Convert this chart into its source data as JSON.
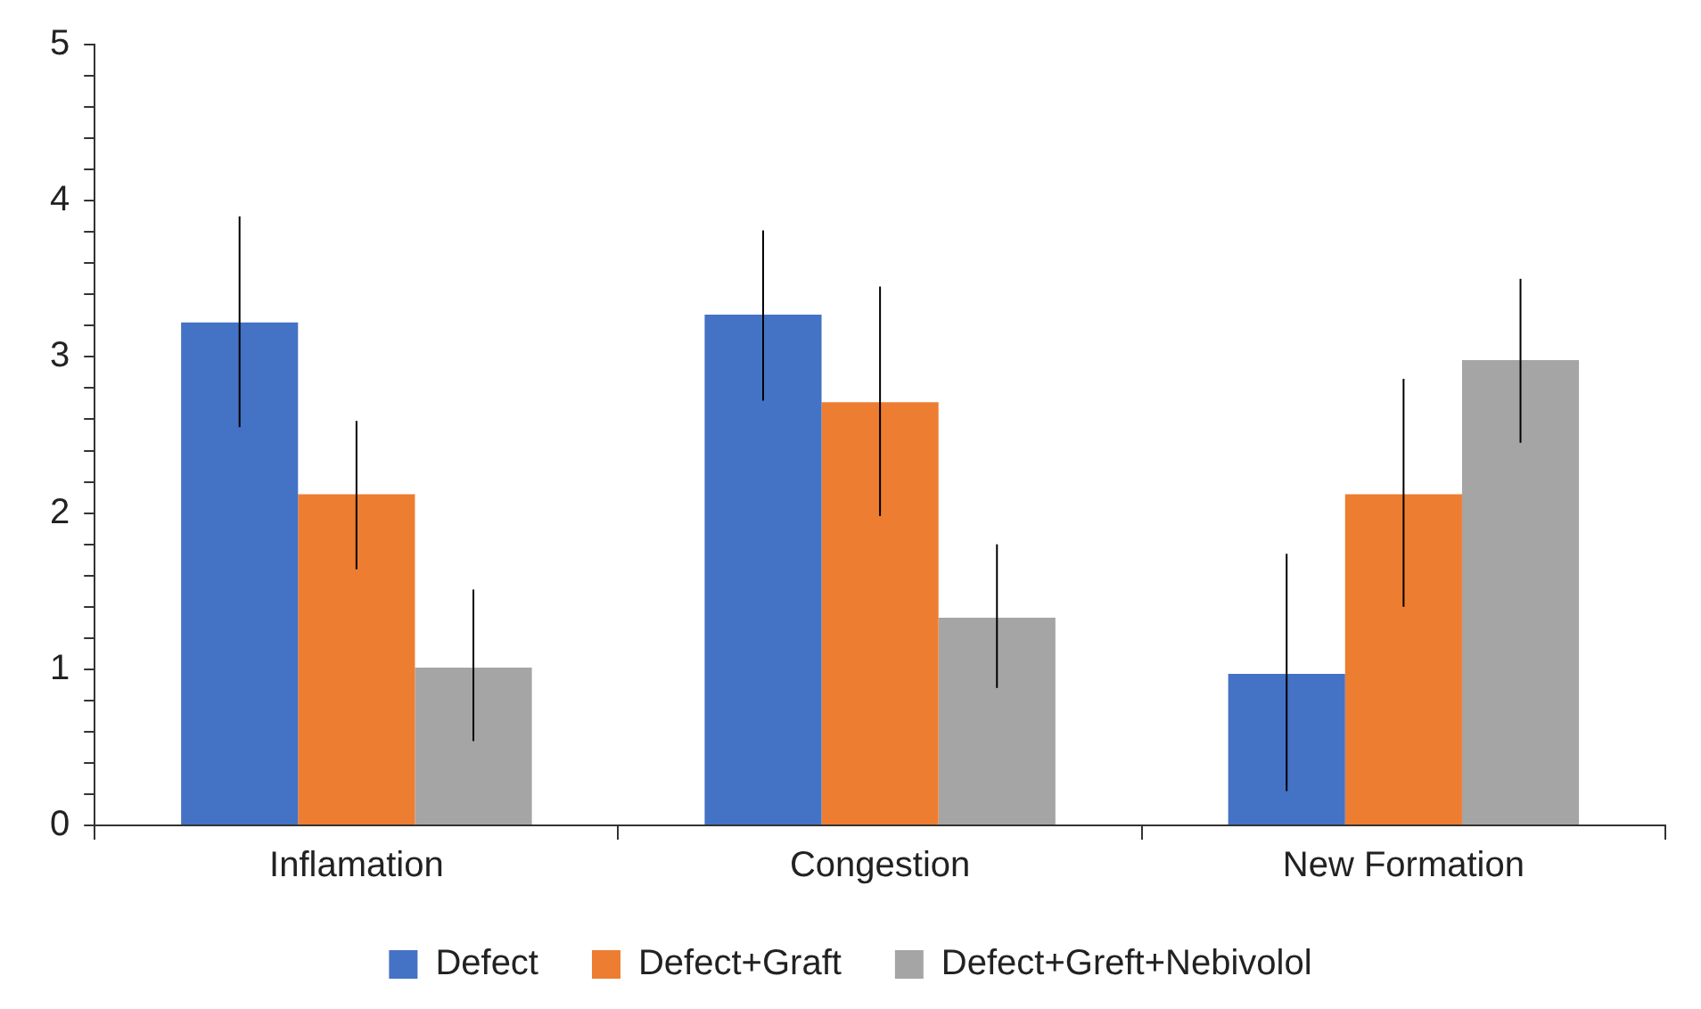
{
  "chart_data": {
    "type": "bar",
    "categories": [
      "Inflamation",
      "Congestion",
      "New Formation"
    ],
    "series": [
      {
        "name": "Defect",
        "color": "#4472c4",
        "values": [
          3.22,
          3.27,
          0.97
        ],
        "errors": [
          [
            2.55,
            3.9
          ],
          [
            2.72,
            3.81
          ],
          [
            0.22,
            1.74
          ]
        ]
      },
      {
        "name": "Defect+Graft",
        "color": "#ed7d31",
        "values": [
          2.12,
          2.71,
          2.12
        ],
        "errors": [
          [
            1.64,
            2.59
          ],
          [
            1.98,
            3.45
          ],
          [
            1.4,
            2.86
          ]
        ]
      },
      {
        "name": "Defect+Greft+Nebivolol",
        "color": "#a5a5a5",
        "values": [
          1.01,
          1.33,
          2.98
        ],
        "errors": [
          [
            0.54,
            1.51
          ],
          [
            0.88,
            1.8
          ],
          [
            2.45,
            3.5
          ]
        ]
      }
    ],
    "ylim": [
      0,
      5
    ],
    "yticks": [
      0,
      {
        "value": 0.2,
        "label": null
      },
      {
        "value": 0.4,
        "label": null
      },
      {
        "value": 0.6,
        "label": null
      },
      {
        "value": 0.8,
        "label": null
      },
      1,
      {
        "value": 1.2,
        "label": null
      },
      {
        "value": 1.4,
        "label": null
      },
      {
        "value": 1.6,
        "label": null
      },
      {
        "value": 1.8,
        "label": null
      },
      2,
      {
        "value": 2.2,
        "label": null
      },
      {
        "value": 2.4,
        "label": null
      },
      {
        "value": 2.6,
        "label": null
      },
      {
        "value": 2.8,
        "label": null
      },
      3,
      {
        "value": 3.2,
        "label": null
      },
      {
        "value": 3.4,
        "label": null
      },
      {
        "value": 3.6,
        "label": null
      },
      {
        "value": 3.8,
        "label": null
      },
      4,
      {
        "value": 4.2,
        "label": null
      },
      {
        "value": 4.4,
        "label": null
      },
      {
        "value": 4.6,
        "label": null
      },
      {
        "value": 4.8,
        "label": null
      },
      5
    ],
    "grid": false,
    "legend": "bottom"
  }
}
